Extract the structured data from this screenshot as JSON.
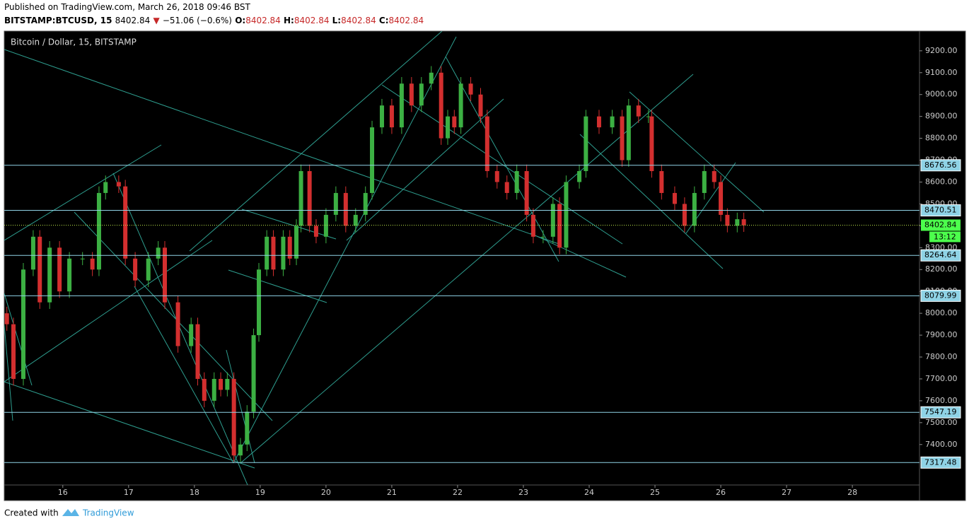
{
  "header": {
    "published": "Published on TradingView.com, March 26, 2018 09:46 BST",
    "symbol": "BITSTAMP:BTCUSD, 15",
    "last": "8402.84",
    "arrow": "▼",
    "change": "−51.06 (−0.6%)",
    "open_label": "O:",
    "open": "8402.84",
    "high_label": "H:",
    "high": "8402.84",
    "low_label": "L:",
    "low": "8402.84",
    "close_label": "C:",
    "close": "8402.84"
  },
  "chart_data": {
    "type": "candlestick",
    "title": "Bitcoin / Dollar, 15, BITSTAMP",
    "up_color": "#3cb043",
    "down_color": "#d32f2f",
    "x": [
      15.15,
      15.25,
      15.4,
      15.55,
      15.65,
      15.8,
      15.95,
      16.1,
      16.3,
      16.45,
      16.55,
      16.65,
      16.85,
      16.95,
      17.1,
      17.3,
      17.45,
      17.55,
      17.75,
      17.95,
      18.05,
      18.15,
      18.3,
      18.4,
      18.5,
      18.6,
      18.7,
      18.8,
      18.9,
      18.98,
      19.1,
      19.2,
      19.35,
      19.45,
      19.55,
      19.62,
      19.75,
      19.85,
      20.0,
      20.15,
      20.3,
      20.45,
      20.6,
      20.7,
      20.85,
      21.0,
      21.15,
      21.3,
      21.45,
      21.6,
      21.75,
      21.85,
      21.95,
      22.05,
      22.2,
      22.35,
      22.45,
      22.6,
      22.75,
      22.9,
      23.05,
      23.15,
      23.3,
      23.45,
      23.55,
      23.65,
      23.85,
      23.95,
      24.15,
      24.35,
      24.5,
      24.6,
      24.75,
      24.9,
      24.95,
      25.1,
      25.3,
      25.45,
      25.6,
      25.75,
      25.9,
      26.0,
      26.1,
      26.25,
      26.35
    ],
    "open": [
      8000,
      7950,
      7700,
      8200,
      8350,
      8050,
      8300,
      8100,
      8250,
      8250,
      8200,
      8550,
      8600,
      8580,
      8250,
      8150,
      8250,
      8300,
      8050,
      7850,
      7950,
      7700,
      7600,
      7700,
      7650,
      7700,
      7350,
      7400,
      7550,
      7900,
      8200,
      8350,
      8200,
      8350,
      8250,
      8400,
      8650,
      8400,
      8350,
      8450,
      8550,
      8400,
      8450,
      8550,
      8850,
      8950,
      8850,
      9050,
      8950,
      9050,
      9100,
      8800,
      8900,
      8850,
      9050,
      9000,
      8900,
      8650,
      8600,
      8550,
      8650,
      8450,
      8350,
      8350,
      8500,
      8300,
      8600,
      8650,
      8900,
      8850,
      8900,
      8700,
      8950,
      8900,
      8900,
      8650,
      8550,
      8500,
      8400,
      8550,
      8650,
      8600,
      8450,
      8400,
      8430
    ],
    "high": [
      8030,
      7980,
      8230,
      8380,
      8380,
      8330,
      8330,
      8280,
      8280,
      8280,
      8580,
      8630,
      8630,
      8610,
      8280,
      8280,
      8330,
      8330,
      8080,
      7980,
      7980,
      7730,
      7730,
      7730,
      7730,
      7730,
      7430,
      7580,
      7930,
      8230,
      8380,
      8380,
      8380,
      8380,
      8430,
      8680,
      8680,
      8430,
      8480,
      8580,
      8580,
      8480,
      8580,
      8880,
      8980,
      8980,
      9080,
      9080,
      9080,
      9130,
      9130,
      8930,
      8930,
      9080,
      9080,
      9030,
      8930,
      8680,
      8630,
      8680,
      8680,
      8480,
      8380,
      8530,
      8530,
      8630,
      8680,
      8930,
      8930,
      8930,
      8930,
      8980,
      8980,
      8930,
      8930,
      8680,
      8580,
      8530,
      8580,
      8680,
      8680,
      8630,
      8480,
      8460,
      8460
    ],
    "low": [
      7920,
      7670,
      7670,
      8170,
      8020,
      8020,
      8070,
      8070,
      8220,
      8170,
      8170,
      8520,
      8550,
      8220,
      8120,
      8120,
      8220,
      8020,
      7820,
      7820,
      7670,
      7570,
      7570,
      7620,
      7620,
      7320,
      7320,
      7370,
      7520,
      7870,
      8170,
      8170,
      8170,
      8220,
      8220,
      8370,
      8370,
      8320,
      8320,
      8420,
      8370,
      8370,
      8420,
      8520,
      8820,
      8820,
      8820,
      8920,
      8920,
      9020,
      8770,
      8770,
      8820,
      8820,
      8970,
      8870,
      8620,
      8570,
      8520,
      8520,
      8420,
      8320,
      8320,
      8320,
      8270,
      8270,
      8570,
      8620,
      8820,
      8820,
      8670,
      8670,
      8870,
      8870,
      8620,
      8520,
      8470,
      8370,
      8370,
      8520,
      8570,
      8420,
      8370,
      8370,
      8372
    ],
    "close": [
      7950,
      7700,
      8200,
      8350,
      8050,
      8300,
      8100,
      8250,
      8250,
      8200,
      8550,
      8600,
      8580,
      8250,
      8150,
      8250,
      8300,
      8050,
      7850,
      7950,
      7700,
      7600,
      7700,
      7650,
      7700,
      7350,
      7400,
      7550,
      7900,
      8200,
      8350,
      8200,
      8350,
      8250,
      8400,
      8650,
      8400,
      8350,
      8450,
      8550,
      8400,
      8450,
      8550,
      8850,
      8950,
      8850,
      9050,
      8950,
      9050,
      9100,
      8800,
      8900,
      8850,
      9050,
      9000,
      8900,
      8650,
      8600,
      8550,
      8650,
      8450,
      8350,
      8350,
      8500,
      8300,
      8600,
      8650,
      8900,
      8850,
      8900,
      8700,
      8950,
      8900,
      8900,
      8650,
      8550,
      8500,
      8400,
      8550,
      8650,
      8600,
      8450,
      8400,
      8430,
      8402.84
    ],
    "xlim": [
      15.11,
      29.02
    ],
    "xticks": [
      16,
      17,
      18,
      19,
      20,
      21,
      22,
      23,
      24,
      25,
      26,
      27,
      28
    ],
    "ylim": [
      7215,
      9290
    ],
    "yticks": [
      {
        "value": 7400,
        "label": "7400.00"
      },
      {
        "value": 7500,
        "label": "7500.00"
      },
      {
        "value": 7600,
        "label": "7600.00"
      },
      {
        "value": 7700,
        "label": "7700.00"
      },
      {
        "value": 7800,
        "label": "7800.00"
      },
      {
        "value": 7900,
        "label": "7900.00"
      },
      {
        "value": 8000,
        "label": "8000.00"
      },
      {
        "value": 8100,
        "label": "8100.00"
      },
      {
        "value": 8200,
        "label": "8200.00"
      },
      {
        "value": 8300,
        "label": "8300.00"
      },
      {
        "value": 8400,
        "label": "8400.00"
      },
      {
        "value": 8500,
        "label": "8500.00"
      },
      {
        "value": 8600,
        "label": "8600.00"
      },
      {
        "value": 8700,
        "label": "8700.00"
      },
      {
        "value": 8800,
        "label": "8800.00"
      },
      {
        "value": 8900,
        "label": "8900.00"
      },
      {
        "value": 9000,
        "label": "9000.00"
      },
      {
        "value": 9100,
        "label": "9100.00"
      },
      {
        "value": 9200,
        "label": "9200.00"
      }
    ],
    "levels": [
      8676.56,
      8470.51,
      8264.64,
      8079.99,
      7547.19,
      7317.48
    ],
    "level_color": "#8fd3e6",
    "last_price": 8402.84,
    "countdown": "13:12",
    "last_color": "#4cff4c"
  },
  "footer": {
    "created": "Created with",
    "brand": "TradingView"
  }
}
